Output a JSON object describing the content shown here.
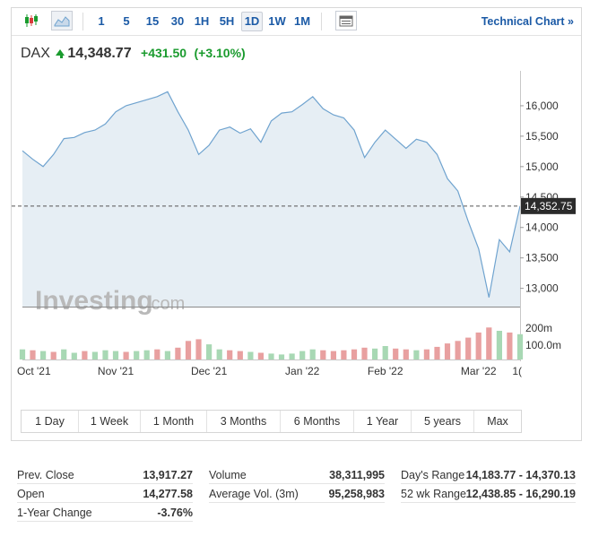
{
  "toolbar": {
    "chart_type_icons": [
      "candlestick-icon",
      "area-chart-icon"
    ],
    "intervals": [
      "1",
      "5",
      "15",
      "30",
      "1H",
      "5H",
      "1D",
      "1W",
      "1M"
    ],
    "active_interval": "1D",
    "table_icon": "table-icon",
    "technical_chart_label": "Technical Chart »"
  },
  "quote": {
    "symbol": "DAX",
    "price": "14,348.77",
    "change": "+431.50",
    "change_pct": "(+3.10%)",
    "direction": "up",
    "up_color": "#1a9b2e"
  },
  "chart": {
    "current_price_label": "14,352.75",
    "y_ticks": [
      "16,000",
      "15,500",
      "15,000",
      "14,500",
      "14,000",
      "13,500",
      "13,000"
    ],
    "volume_ticks": [
      "200m",
      "100.0m"
    ],
    "x_ticks": [
      "Oct '21",
      "Nov '21",
      "Dec '21",
      "Jan '22",
      "Feb '22",
      "Mar '22",
      "1("
    ],
    "watermark_main": "Investing",
    "watermark_suffix": ".com",
    "line_color": "#6fa3cf",
    "fill_color": "#e6eef4",
    "vol_up_color": "#a8d8b4",
    "vol_down_color": "#e8a0a0"
  },
  "chart_data": {
    "type": "area",
    "title": "",
    "xlabel": "",
    "ylabel": "",
    "ylim": [
      12700,
      16500
    ],
    "x": [
      "Sep 30 '21",
      "Oct 4",
      "Oct 7",
      "Oct 11",
      "Oct 14",
      "Oct 18",
      "Oct 21",
      "Oct 25",
      "Oct 28",
      "Nov 1",
      "Nov 4",
      "Nov 8",
      "Nov 11",
      "Nov 15",
      "Nov 18",
      "Nov 22",
      "Nov 25",
      "Nov 29",
      "Dec 2",
      "Dec 6",
      "Dec 9",
      "Dec 13",
      "Dec 16",
      "Dec 20",
      "Dec 23",
      "Dec 28",
      "Dec 31",
      "Jan 4 '22",
      "Jan 7",
      "Jan 11",
      "Jan 14",
      "Jan 18",
      "Jan 21",
      "Jan 25",
      "Jan 28",
      "Feb 1",
      "Feb 4",
      "Feb 8",
      "Feb 11",
      "Feb 15",
      "Feb 18",
      "Feb 22",
      "Feb 25",
      "Mar 1",
      "Mar 4",
      "Mar 8",
      "Mar 11",
      "Mar 15",
      "Mar 18"
    ],
    "series": [
      {
        "values": [
          15260,
          15120,
          15000,
          15200,
          15460,
          15480,
          15560,
          15600,
          15700,
          15900,
          16000,
          16050,
          16100,
          16150,
          16230,
          15900,
          15600,
          15200,
          15350,
          15600,
          15650,
          15550,
          15620,
          15400,
          15750,
          15880,
          15900,
          16020,
          16150,
          15950,
          15850,
          15800,
          15600,
          15150,
          15400,
          15600,
          15450,
          15300,
          15450,
          15400,
          15200,
          14800,
          14600,
          14100,
          13650,
          12850,
          13800,
          13600,
          14352
        ]
      }
    ],
    "volume": {
      "ylim": [
        0,
        250
      ],
      "values": [
        60,
        55,
        50,
        45,
        60,
        40,
        50,
        45,
        55,
        50,
        45,
        50,
        55,
        60,
        50,
        70,
        110,
        120,
        90,
        60,
        55,
        50,
        45,
        40,
        35,
        30,
        35,
        50,
        60,
        55,
        50,
        55,
        60,
        70,
        65,
        80,
        65,
        60,
        55,
        60,
        75,
        95,
        110,
        130,
        160,
        190,
        170,
        160,
        150
      ],
      "up": [
        true,
        false,
        true,
        false,
        true,
        true,
        false,
        true,
        true,
        true,
        false,
        true,
        true,
        false,
        true,
        false,
        false,
        false,
        true,
        true,
        false,
        false,
        true,
        false,
        true,
        true,
        true,
        true,
        true,
        false,
        false,
        false,
        false,
        false,
        true,
        true,
        false,
        false,
        true,
        false,
        false,
        false,
        false,
        false,
        false,
        false,
        true,
        false,
        true
      ]
    },
    "grid": false,
    "legend": "none"
  },
  "range_buttons": [
    "1 Day",
    "1 Week",
    "1 Month",
    "3 Months",
    "6 Months",
    "1 Year",
    "5 years",
    "Max"
  ],
  "stats": {
    "col1": [
      {
        "label": "Prev. Close",
        "value": "13,917.27"
      },
      {
        "label": "Open",
        "value": "14,277.58"
      },
      {
        "label": "1-Year Change",
        "value": "-3.76%"
      }
    ],
    "col2": [
      {
        "label": "Volume",
        "value": "38,311,995"
      },
      {
        "label": "Average Vol. (3m)",
        "value": "95,258,983"
      }
    ],
    "col3": [
      {
        "label": "Day's Range",
        "value": "14,183.77 - 14,370.13"
      },
      {
        "label": "52 wk Range",
        "value": "12,438.85 - 16,290.19"
      }
    ]
  }
}
